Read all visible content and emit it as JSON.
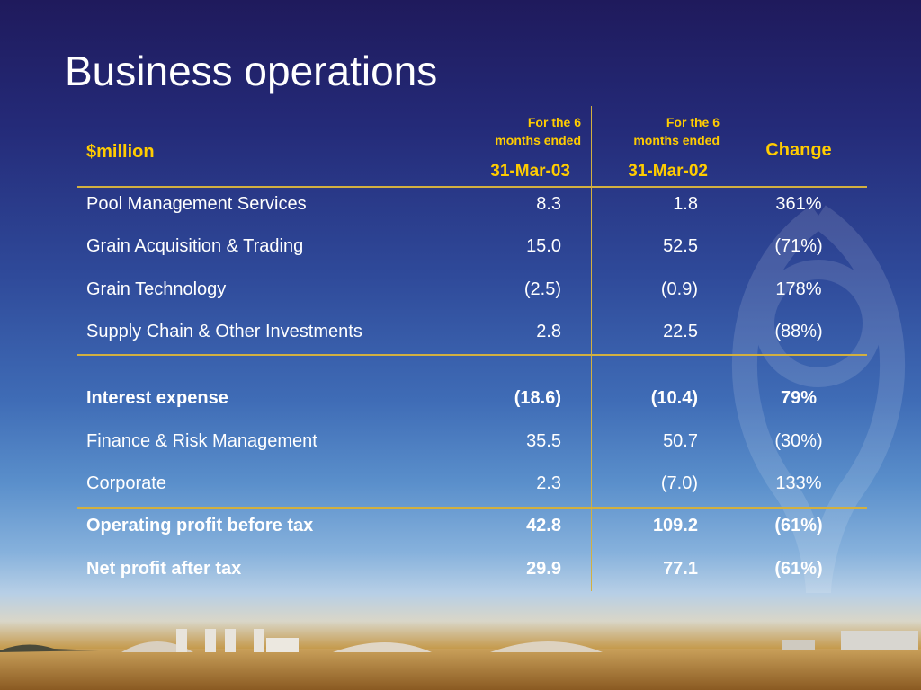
{
  "slide": {
    "title": "Business operations"
  },
  "table": {
    "header": {
      "label": "$million",
      "col1_note": "For the 6 months ended",
      "col1_note_line1": "For the 6",
      "col1_note_line2": "months ended",
      "col1_date": "31-Mar-03",
      "col2_note_line1": "For the 6",
      "col2_note_line2": "months ended",
      "col2_date": "31-Mar-02",
      "change": "Change"
    },
    "rows": [
      {
        "label": "Pool Management Services",
        "v1": "8.3",
        "v2": "1.8",
        "change": "361%",
        "bold": false
      },
      {
        "label": "Grain Acquisition & Trading",
        "v1": "15.0",
        "v2": "52.5",
        "change": "(71%)",
        "bold": false
      },
      {
        "label": "Grain Technology",
        "v1": "(2.5)",
        "v2": "(0.9)",
        "change": "178%",
        "bold": false
      },
      {
        "label": "Supply Chain & Other Investments",
        "v1": "2.8",
        "v2": "22.5",
        "change": "(88%)",
        "bold": false
      },
      {
        "label": "Interest expense",
        "v1": "(18.6)",
        "v2": "(10.4)",
        "change": "79%",
        "bold": true
      },
      {
        "label": "Finance & Risk Management",
        "v1": "35.5",
        "v2": "50.7",
        "change": "(30%)",
        "bold": false
      },
      {
        "label": "Corporate",
        "v1": "2.3",
        "v2": "(7.0)",
        "change": "133%",
        "bold": false
      },
      {
        "label": "Operating profit before tax",
        "v1": "42.8",
        "v2": "109.2",
        "change": "(61%)",
        "bold": true
      },
      {
        "label": "Net profit after tax",
        "v1": "29.9",
        "v2": "77.1",
        "change": "(61%)",
        "bold": true
      }
    ]
  },
  "colors": {
    "accent": "#ffcc00",
    "text": "#ffffff",
    "rule": "#d2b040"
  }
}
